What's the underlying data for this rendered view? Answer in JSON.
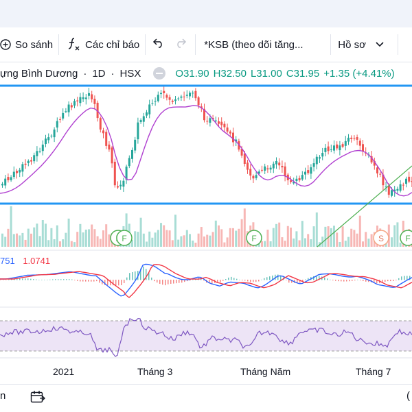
{
  "toolbar": {
    "compare_label": "So sánh",
    "indicators_label": "Các chỉ báo",
    "watchlist_label": "*KSB (theo dõi tăng...",
    "profile_label": "Hồ sơ"
  },
  "legend": {
    "symbol_name": "ựng Bình Dương",
    "interval": "1D",
    "exchange": "HSX",
    "open": "O31.90",
    "high": "H32.50",
    "low": "L31.00",
    "close": "C31.95",
    "change": "+1.35 (+4.41%)"
  },
  "markers": {
    "f": "F",
    "s": "S"
  },
  "macd": {
    "value1": "751",
    "value2": "1.0741"
  },
  "x_axis": {
    "label_2021": "2021",
    "label_thang3": "Tháng 3",
    "label_thangnam": "Tháng Năm",
    "label_thang7": "Tháng 7"
  },
  "bottom_bar": {
    "left_text": "n",
    "right_text": "("
  },
  "colors": {
    "up": "#26a69a",
    "down": "#ef5350",
    "ma_line": "#b040d0",
    "hline": "#2196f3",
    "trendline": "#4caf50",
    "macd_line": "#2962ff",
    "signal_line": "#f23645",
    "rsi_line": "#7e57c2"
  },
  "icons": [
    "plus-circle-icon",
    "fx-icon",
    "undo-icon",
    "redo-icon",
    "chevron-down-icon",
    "eye-icon",
    "date-range-icon"
  ]
}
